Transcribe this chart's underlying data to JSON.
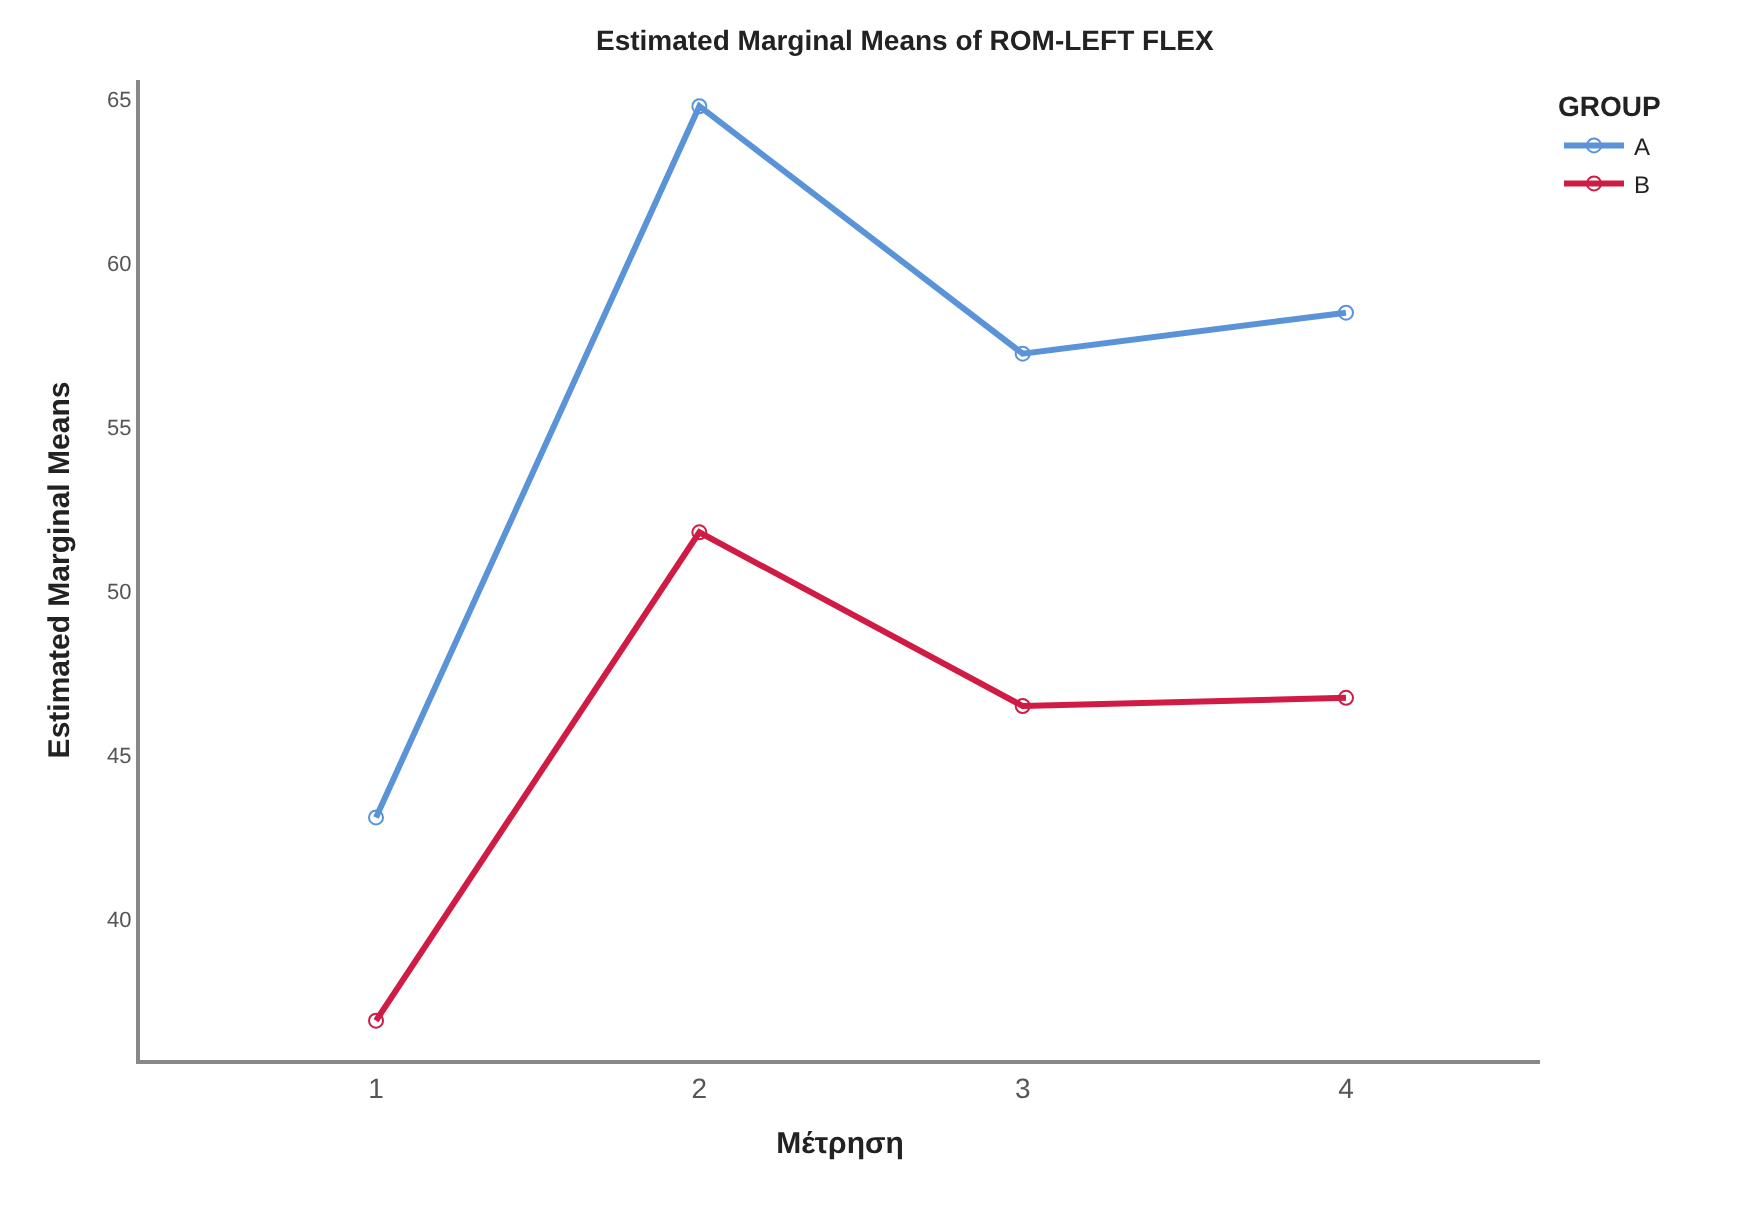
{
  "chart_data": {
    "type": "line",
    "title": "Estimated Marginal Means of ROM-LEFT FLEX",
    "xlabel": "Μέτρηση",
    "ylabel": "Estimated Marginal Means",
    "legend_title": "GROUP",
    "x": [
      1,
      2,
      3,
      4
    ],
    "xlim": [
      0.27,
      4.6
    ],
    "xticks": [
      1,
      2,
      3,
      4
    ],
    "ylim": [
      35.7,
      65.6
    ],
    "yticks": [
      40,
      45,
      50,
      55,
      60,
      65
    ],
    "series": [
      {
        "name": "A",
        "color": "#5b93d9",
        "values": [
          43.1,
          64.8,
          57.25,
          58.5
        ]
      },
      {
        "name": "B",
        "color": "#d01c45",
        "values": [
          36.9,
          51.8,
          46.5,
          46.75
        ]
      }
    ],
    "marker": "circle",
    "line_style": "solid",
    "legend": "top right"
  }
}
